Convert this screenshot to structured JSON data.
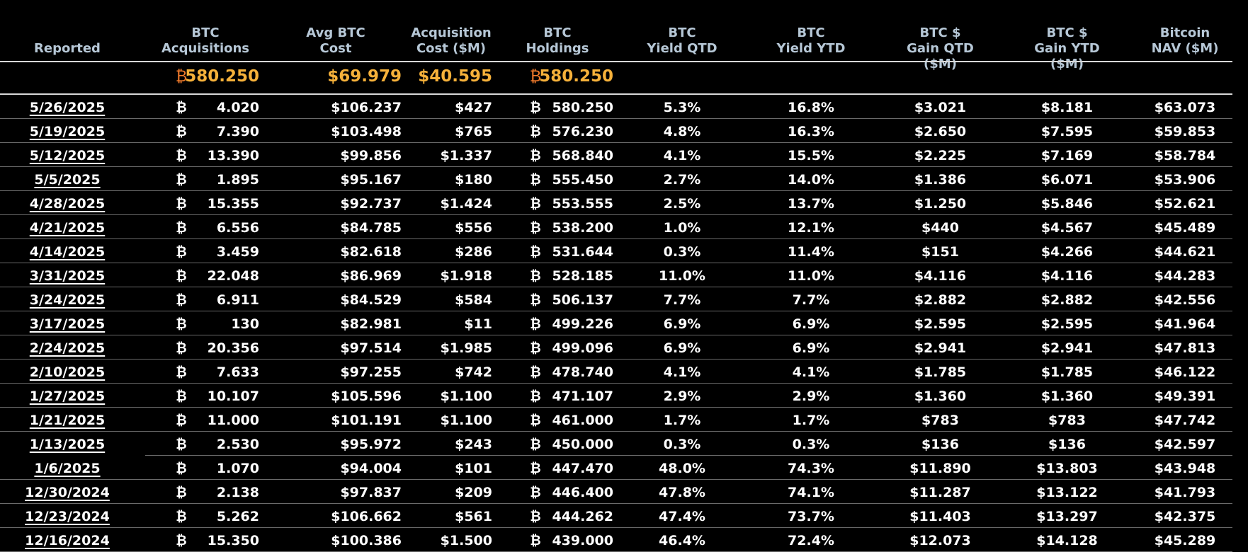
{
  "headers": {
    "reported": [
      "Reported"
    ],
    "acquisitions": [
      "BTC",
      "Acquisitions"
    ],
    "avg_cost": [
      "Avg BTC",
      "Cost"
    ],
    "acq_cost": [
      "Acquisition",
      "Cost ($M)"
    ],
    "holdings": [
      "BTC",
      "Holdings"
    ],
    "yield_qtd": [
      "BTC",
      "Yield QTD"
    ],
    "yield_ytd": [
      "BTC",
      "Yield YTD"
    ],
    "gain_qtd": [
      "BTC $",
      "Gain QTD ($M)"
    ],
    "gain_ytd": [
      "BTC $",
      "Gain YTD ($M)"
    ],
    "nav": [
      "Bitcoin",
      "NAV ($M)"
    ]
  },
  "btc_symbol": "₿",
  "totals": {
    "acquisitions": "580.250",
    "avg_cost": "$69.979",
    "acq_cost": "$40.595",
    "holdings": "580.250"
  },
  "rows": [
    {
      "date": "5/26/2025",
      "acq": "4.020",
      "avg": "$106.237",
      "cost": "$427",
      "hold": "580.250",
      "yqtd": "5.3%",
      "yytd": "16.8%",
      "gqtd": "$3.021",
      "gytd": "$8.181",
      "nav": "$63.073"
    },
    {
      "date": "5/19/2025",
      "acq": "7.390",
      "avg": "$103.498",
      "cost": "$765",
      "hold": "576.230",
      "yqtd": "4.8%",
      "yytd": "16.3%",
      "gqtd": "$2.650",
      "gytd": "$7.595",
      "nav": "$59.853"
    },
    {
      "date": "5/12/2025",
      "acq": "13.390",
      "avg": "$99.856",
      "cost": "$1.337",
      "hold": "568.840",
      "yqtd": "4.1%",
      "yytd": "15.5%",
      "gqtd": "$2.225",
      "gytd": "$7.169",
      "nav": "$58.784"
    },
    {
      "date": "5/5/2025",
      "acq": "1.895",
      "avg": "$95.167",
      "cost": "$180",
      "hold": "555.450",
      "yqtd": "2.7%",
      "yytd": "14.0%",
      "gqtd": "$1.386",
      "gytd": "$6.071",
      "nav": "$53.906"
    },
    {
      "date": "4/28/2025",
      "acq": "15.355",
      "avg": "$92.737",
      "cost": "$1.424",
      "hold": "553.555",
      "yqtd": "2.5%",
      "yytd": "13.7%",
      "gqtd": "$1.250",
      "gytd": "$5.846",
      "nav": "$52.621"
    },
    {
      "date": "4/21/2025",
      "acq": "6.556",
      "avg": "$84.785",
      "cost": "$556",
      "hold": "538.200",
      "yqtd": "1.0%",
      "yytd": "12.1%",
      "gqtd": "$440",
      "gytd": "$4.567",
      "nav": "$45.489"
    },
    {
      "date": "4/14/2025",
      "acq": "3.459",
      "avg": "$82.618",
      "cost": "$286",
      "hold": "531.644",
      "yqtd": "0.3%",
      "yytd": "11.4%",
      "gqtd": "$151",
      "gytd": "$4.266",
      "nav": "$44.621"
    },
    {
      "date": "3/31/2025",
      "acq": "22.048",
      "avg": "$86.969",
      "cost": "$1.918",
      "hold": "528.185",
      "yqtd": "11.0%",
      "yytd": "11.0%",
      "gqtd": "$4.116",
      "gytd": "$4.116",
      "nav": "$44.283"
    },
    {
      "date": "3/24/2025",
      "acq": "6.911",
      "avg": "$84.529",
      "cost": "$584",
      "hold": "506.137",
      "yqtd": "7.7%",
      "yytd": "7.7%",
      "gqtd": "$2.882",
      "gytd": "$2.882",
      "nav": "$42.556"
    },
    {
      "date": "3/17/2025",
      "acq": "130",
      "avg": "$82.981",
      "cost": "$11",
      "hold": "499.226",
      "yqtd": "6.9%",
      "yytd": "6.9%",
      "gqtd": "$2.595",
      "gytd": "$2.595",
      "nav": "$41.964"
    },
    {
      "date": "2/24/2025",
      "acq": "20.356",
      "avg": "$97.514",
      "cost": "$1.985",
      "hold": "499.096",
      "yqtd": "6.9%",
      "yytd": "6.9%",
      "gqtd": "$2.941",
      "gytd": "$2.941",
      "nav": "$47.813"
    },
    {
      "date": "2/10/2025",
      "acq": "7.633",
      "avg": "$97.255",
      "cost": "$742",
      "hold": "478.740",
      "yqtd": "4.1%",
      "yytd": "4.1%",
      "gqtd": "$1.785",
      "gytd": "$1.785",
      "nav": "$46.122"
    },
    {
      "date": "1/27/2025",
      "acq": "10.107",
      "avg": "$105.596",
      "cost": "$1.100",
      "hold": "471.107",
      "yqtd": "2.9%",
      "yytd": "2.9%",
      "gqtd": "$1.360",
      "gytd": "$1.360",
      "nav": "$49.391"
    },
    {
      "date": "1/21/2025",
      "acq": "11.000",
      "avg": "$101.191",
      "cost": "$1.100",
      "hold": "461.000",
      "yqtd": "1.7%",
      "yytd": "1.7%",
      "gqtd": "$783",
      "gytd": "$783",
      "nav": "$47.742"
    },
    {
      "date": "1/13/2025",
      "acq": "2.530",
      "avg": "$95.972",
      "cost": "$243",
      "hold": "450.000",
      "yqtd": "0.3%",
      "yytd": "0.3%",
      "gqtd": "$136",
      "gytd": "$136",
      "nav": "$42.597"
    },
    {
      "date": "1/6/2025",
      "acq": "1.070",
      "avg": "$94.004",
      "cost": "$101",
      "hold": "447.470",
      "yqtd": "48.0%",
      "yytd": "74.3%",
      "gqtd": "$11.890",
      "gytd": "$13.803",
      "nav": "$43.948"
    },
    {
      "date": "12/30/2024",
      "acq": "2.138",
      "avg": "$97.837",
      "cost": "$209",
      "hold": "446.400",
      "yqtd": "47.8%",
      "yytd": "74.1%",
      "gqtd": "$11.287",
      "gytd": "$13.122",
      "nav": "$41.793"
    },
    {
      "date": "12/23/2024",
      "acq": "5.262",
      "avg": "$106.662",
      "cost": "$561",
      "hold": "444.262",
      "yqtd": "47.4%",
      "yytd": "73.7%",
      "gqtd": "$11.403",
      "gytd": "$13.297",
      "nav": "$42.375"
    },
    {
      "date": "12/16/2024",
      "acq": "15.350",
      "avg": "$100.386",
      "cost": "$1.500",
      "hold": "439.000",
      "yqtd": "46.4%",
      "yytd": "72.4%",
      "gqtd": "$12.073",
      "gytd": "$14.128",
      "nav": "$45.289"
    }
  ]
}
